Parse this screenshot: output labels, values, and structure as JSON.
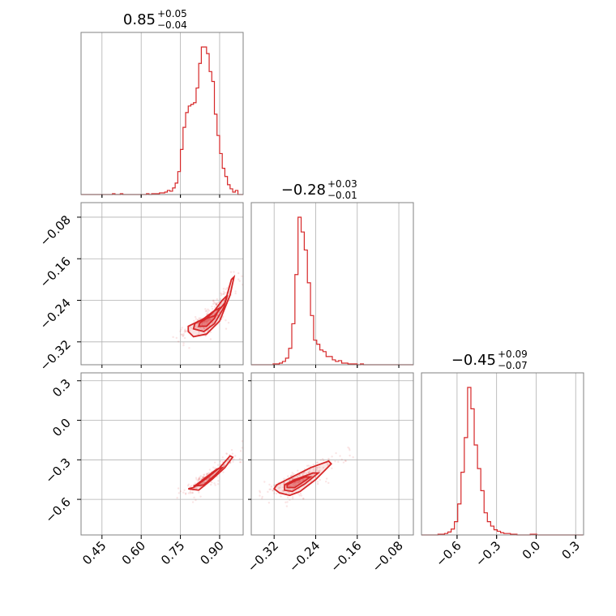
{
  "chart_data": {
    "type": "corner",
    "color": "#d62728",
    "grid": true,
    "parameters": [
      {
        "median": "0.85",
        "plus": "+0.05",
        "minus": "−0.04",
        "range": [
          0.37,
          0.99
        ],
        "ticks": [
          0.45,
          0.6,
          0.75,
          0.9
        ],
        "tick_labels": [
          "0.45",
          "0.60",
          "0.75",
          "0.90"
        ]
      },
      {
        "median": "−0.28",
        "plus": "+0.03",
        "minus": "−0.01",
        "range": [
          -0.364,
          -0.052
        ],
        "ticks": [
          -0.32,
          -0.24,
          -0.16,
          -0.08
        ],
        "tick_labels": [
          "−0.32",
          "−0.24",
          "−0.16",
          "−0.08"
        ]
      },
      {
        "median": "−0.45",
        "plus": "+0.09",
        "minus": "−0.07",
        "range": [
          -0.87,
          0.36
        ],
        "ticks": [
          -0.6,
          -0.3,
          0.0,
          0.3
        ],
        "tick_labels": [
          "−0.6",
          "−0.3",
          "0.0",
          "0.3"
        ]
      }
    ],
    "histograms": [
      {
        "param": 0,
        "bins": [
          0.37,
          0.38,
          0.39,
          0.4,
          0.41,
          0.42,
          0.43,
          0.44,
          0.45,
          0.46,
          0.47,
          0.48,
          0.49,
          0.5,
          0.51,
          0.52,
          0.53,
          0.54,
          0.55,
          0.56,
          0.57,
          0.58,
          0.59,
          0.6,
          0.61,
          0.62,
          0.63,
          0.64,
          0.65,
          0.66,
          0.67,
          0.68,
          0.69,
          0.7,
          0.71,
          0.72,
          0.73,
          0.74,
          0.75,
          0.76,
          0.77,
          0.78,
          0.79,
          0.8,
          0.81,
          0.82,
          0.83,
          0.84,
          0.85,
          0.86,
          0.87,
          0.88,
          0.89,
          0.9,
          0.91,
          0.92,
          0.93,
          0.94,
          0.95,
          0.96,
          0.97,
          0.98,
          0.99
        ],
        "counts": [
          0,
          0,
          0,
          0,
          0,
          0,
          0,
          0,
          0,
          0,
          0,
          0,
          1,
          0,
          0,
          1,
          0,
          0,
          0,
          0,
          0,
          0,
          0,
          0,
          0,
          1,
          0,
          1,
          1,
          1,
          2,
          2,
          3,
          5,
          4,
          8,
          14,
          28,
          55,
          82,
          100,
          108,
          110,
          112,
          130,
          160,
          180,
          180,
          172,
          150,
          138,
          98,
          72,
          50,
          32,
          22,
          12,
          7,
          3,
          5,
          0,
          0
        ]
      },
      {
        "param": 1,
        "bins": [
          -0.364,
          -0.358,
          -0.352,
          -0.346,
          -0.34,
          -0.334,
          -0.328,
          -0.322,
          -0.316,
          -0.31,
          -0.304,
          -0.298,
          -0.292,
          -0.286,
          -0.28,
          -0.274,
          -0.268,
          -0.262,
          -0.256,
          -0.25,
          -0.244,
          -0.238,
          -0.232,
          -0.226,
          -0.22,
          -0.214,
          -0.208,
          -0.202,
          -0.196,
          -0.19,
          -0.184,
          -0.178,
          -0.172,
          -0.166,
          -0.16,
          -0.154,
          -0.148,
          -0.142,
          -0.136,
          -0.13,
          -0.124,
          -0.118,
          -0.112,
          -0.106,
          -0.1,
          -0.094,
          -0.088,
          -0.082,
          -0.076,
          -0.07,
          -0.064,
          -0.058,
          -0.052
        ],
        "counts": [
          0,
          0,
          0,
          0,
          0,
          0,
          0,
          1,
          1,
          2,
          4,
          8,
          20,
          50,
          110,
          180,
          162,
          140,
          100,
          60,
          30,
          25,
          18,
          16,
          10,
          10,
          6,
          4,
          5,
          2,
          2,
          1,
          1,
          1,
          0,
          1,
          0,
          0,
          0,
          0,
          0,
          0,
          0,
          0,
          0,
          0,
          0,
          0,
          0,
          0,
          0,
          0
        ]
      },
      {
        "param": 2,
        "bins": [
          -0.87,
          -0.845,
          -0.82,
          -0.795,
          -0.77,
          -0.745,
          -0.72,
          -0.695,
          -0.67,
          -0.645,
          -0.62,
          -0.595,
          -0.57,
          -0.545,
          -0.52,
          -0.495,
          -0.47,
          -0.445,
          -0.42,
          -0.395,
          -0.37,
          -0.345,
          -0.32,
          -0.295,
          -0.27,
          -0.245,
          -0.22,
          -0.195,
          -0.17,
          -0.145,
          -0.12,
          -0.095,
          -0.07,
          -0.045,
          -0.02,
          0.005,
          0.03,
          0.055,
          0.08,
          0.105,
          0.13,
          0.155,
          0.18,
          0.205,
          0.23,
          0.255,
          0.28,
          0.305,
          0.33,
          0.355
        ],
        "counts": [
          0,
          0,
          0,
          0,
          0,
          1,
          1,
          2,
          4,
          8,
          18,
          42,
          85,
          132,
          200,
          171,
          122,
          90,
          60,
          30,
          18,
          12,
          7,
          5,
          3,
          2,
          2,
          1,
          1,
          0,
          0,
          0,
          0,
          1,
          1,
          0,
          0,
          0,
          0,
          0,
          0,
          0,
          0,
          0,
          0,
          0,
          0,
          0,
          0
        ]
      }
    ],
    "pairs": [
      {
        "x_param": 0,
        "y_param": 1,
        "center": [
          0.84,
          -0.28
        ],
        "contours": [
          [
            [
              0.78,
              -0.3
            ],
            [
              0.8,
              -0.31
            ],
            [
              0.85,
              -0.305
            ],
            [
              0.9,
              -0.28
            ],
            [
              0.94,
              -0.23
            ],
            [
              0.955,
              -0.195
            ],
            [
              0.945,
              -0.2
            ],
            [
              0.92,
              -0.245
            ],
            [
              0.88,
              -0.27
            ],
            [
              0.82,
              -0.28
            ],
            [
              0.78,
              -0.29
            ]
          ],
          [
            [
              0.8,
              -0.295
            ],
            [
              0.84,
              -0.3
            ],
            [
              0.88,
              -0.285
            ],
            [
              0.915,
              -0.255
            ],
            [
              0.93,
              -0.23
            ],
            [
              0.91,
              -0.24
            ],
            [
              0.88,
              -0.26
            ],
            [
              0.84,
              -0.275
            ],
            [
              0.805,
              -0.285
            ]
          ],
          [
            [
              0.82,
              -0.29
            ],
            [
              0.85,
              -0.29
            ],
            [
              0.88,
              -0.275
            ],
            [
              0.9,
              -0.255
            ],
            [
              0.88,
              -0.26
            ],
            [
              0.85,
              -0.275
            ],
            [
              0.825,
              -0.283
            ]
          ]
        ]
      },
      {
        "x_param": 0,
        "y_param": 2,
        "center": [
          0.84,
          -0.45
        ],
        "contours": [
          [
            [
              0.78,
              -0.52
            ],
            [
              0.82,
              -0.53
            ],
            [
              0.87,
              -0.45
            ],
            [
              0.92,
              -0.36
            ],
            [
              0.95,
              -0.28
            ],
            [
              0.94,
              -0.27
            ],
            [
              0.9,
              -0.36
            ],
            [
              0.85,
              -0.44
            ],
            [
              0.8,
              -0.51
            ]
          ],
          [
            [
              0.8,
              -0.5
            ],
            [
              0.84,
              -0.49
            ],
            [
              0.88,
              -0.42
            ],
            [
              0.91,
              -0.36
            ],
            [
              0.89,
              -0.37
            ],
            [
              0.85,
              -0.43
            ],
            [
              0.81,
              -0.49
            ]
          ]
        ]
      },
      {
        "x_param": 1,
        "y_param": 2,
        "center": [
          -0.28,
          -0.45
        ],
        "contours": [
          [
            [
              -0.31,
              -0.55
            ],
            [
              -0.29,
              -0.57
            ],
            [
              -0.27,
              -0.54
            ],
            [
              -0.24,
              -0.45
            ],
            [
              -0.21,
              -0.33
            ],
            [
              -0.215,
              -0.31
            ],
            [
              -0.25,
              -0.36
            ],
            [
              -0.29,
              -0.44
            ],
            [
              -0.315,
              -0.49
            ],
            [
              -0.32,
              -0.52
            ]
          ],
          [
            [
              -0.3,
              -0.53
            ],
            [
              -0.285,
              -0.54
            ],
            [
              -0.26,
              -0.48
            ],
            [
              -0.235,
              -0.4
            ],
            [
              -0.245,
              -0.4
            ],
            [
              -0.28,
              -0.45
            ],
            [
              -0.3,
              -0.49
            ]
          ],
          [
            [
              -0.295,
              -0.51
            ],
            [
              -0.28,
              -0.51
            ],
            [
              -0.265,
              -0.47
            ],
            [
              -0.25,
              -0.43
            ],
            [
              -0.26,
              -0.43
            ],
            [
              -0.28,
              -0.46
            ],
            [
              -0.295,
              -0.49
            ]
          ]
        ]
      }
    ]
  }
}
